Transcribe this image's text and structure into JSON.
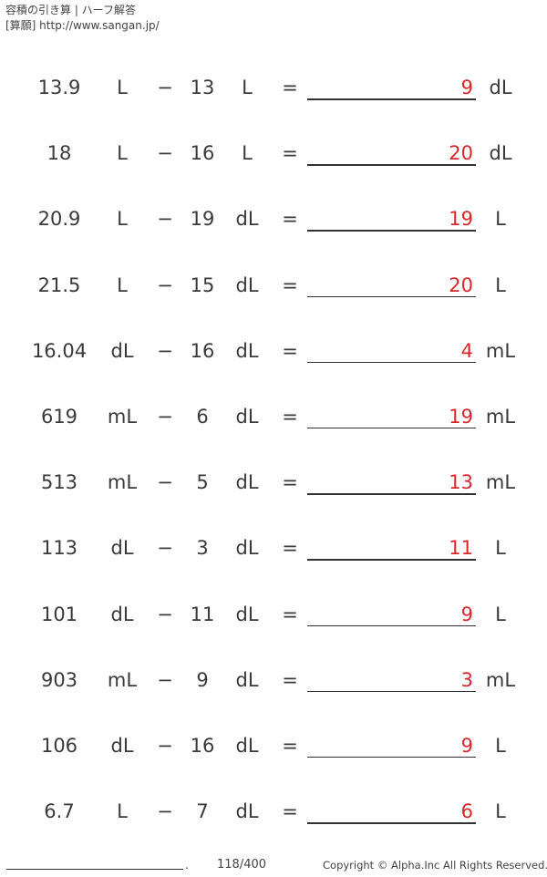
{
  "header": {
    "title": "容積の引き算 | ハーフ解答",
    "site": "[算願] http://www.sangan.jp/"
  },
  "problems": [
    {
      "a": "13.9",
      "unit_a": "L",
      "op": "−",
      "b": "13",
      "unit_b": "L",
      "eq": "=",
      "answer": "9",
      "answer_unit": "dL"
    },
    {
      "a": "18",
      "unit_a": "L",
      "op": "−",
      "b": "16",
      "unit_b": "L",
      "eq": "=",
      "answer": "20",
      "answer_unit": "dL"
    },
    {
      "a": "20.9",
      "unit_a": "L",
      "op": "−",
      "b": "19",
      "unit_b": "dL",
      "eq": "=",
      "answer": "19",
      "answer_unit": "L"
    },
    {
      "a": "21.5",
      "unit_a": "L",
      "op": "−",
      "b": "15",
      "unit_b": "dL",
      "eq": "=",
      "answer": "20",
      "answer_unit": "L"
    },
    {
      "a": "16.04",
      "unit_a": "dL",
      "op": "−",
      "b": "16",
      "unit_b": "dL",
      "eq": "=",
      "answer": "4",
      "answer_unit": "mL"
    },
    {
      "a": "619",
      "unit_a": "mL",
      "op": "−",
      "b": "6",
      "unit_b": "dL",
      "eq": "=",
      "answer": "19",
      "answer_unit": "mL"
    },
    {
      "a": "513",
      "unit_a": "mL",
      "op": "−",
      "b": "5",
      "unit_b": "dL",
      "eq": "=",
      "answer": "13",
      "answer_unit": "mL"
    },
    {
      "a": "113",
      "unit_a": "dL",
      "op": "−",
      "b": "3",
      "unit_b": "dL",
      "eq": "=",
      "answer": "11",
      "answer_unit": "L"
    },
    {
      "a": "101",
      "unit_a": "dL",
      "op": "−",
      "b": "11",
      "unit_b": "dL",
      "eq": "=",
      "answer": "9",
      "answer_unit": "L"
    },
    {
      "a": "903",
      "unit_a": "mL",
      "op": "−",
      "b": "9",
      "unit_b": "dL",
      "eq": "=",
      "answer": "3",
      "answer_unit": "mL"
    },
    {
      "a": "106",
      "unit_a": "dL",
      "op": "−",
      "b": "16",
      "unit_b": "dL",
      "eq": "=",
      "answer": "9",
      "answer_unit": "L"
    },
    {
      "a": "6.7",
      "unit_a": "L",
      "op": "−",
      "b": "7",
      "unit_b": "dL",
      "eq": "=",
      "answer": "6",
      "answer_unit": "L"
    }
  ],
  "footer": {
    "name_dot": ".",
    "page": "118/400",
    "copyright": "Copyright © Alpha.Inc All Rights Reserved."
  },
  "colors": {
    "answer": "#d9282b",
    "text": "#3a3a3a"
  }
}
